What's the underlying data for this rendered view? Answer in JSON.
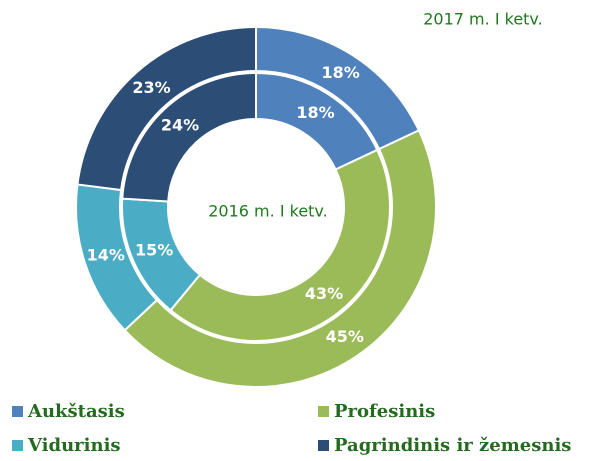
{
  "chart_data": {
    "type": "donut",
    "categories": [
      "Aukštasis",
      "Profesinis",
      "Vidurinis",
      "Pagrindinis ir žemesnis"
    ],
    "colors": [
      "#4f81bd",
      "#9bbb59",
      "#4bacc6",
      "#2c4d75"
    ],
    "series": [
      {
        "name": "2017 m. I ketv.",
        "values": [
          18,
          45,
          14,
          23
        ],
        "value_labels": [
          "18%",
          "45%",
          "14%",
          "23%"
        ]
      },
      {
        "name": "2016 m. I ketv.",
        "values": [
          18,
          43,
          15,
          24
        ],
        "value_labels": [
          "18%",
          "43%",
          "15%",
          "24%"
        ]
      }
    ],
    "legend": "bottom"
  }
}
